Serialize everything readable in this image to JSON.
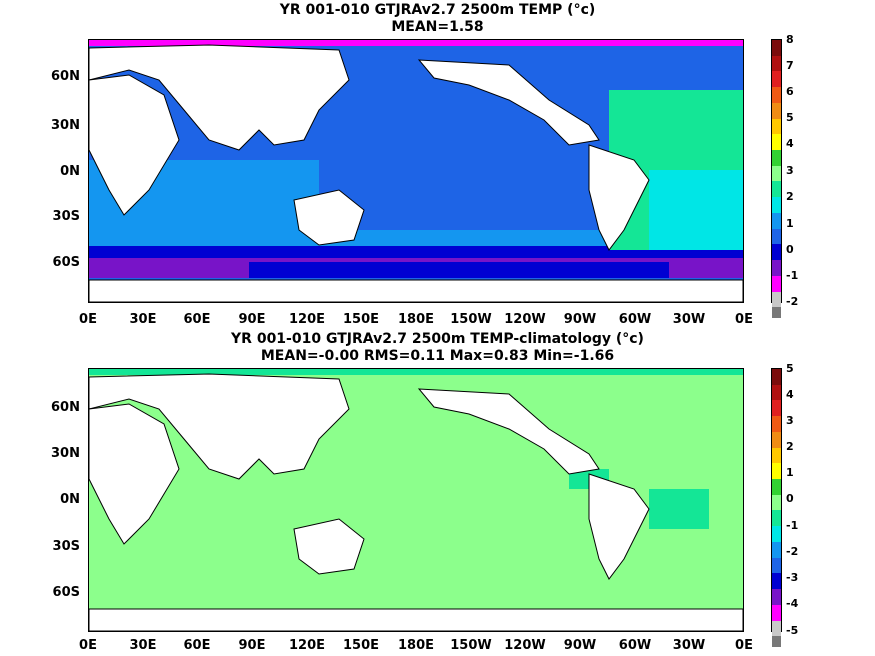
{
  "top": {
    "title": "YR 001-010 GTJRAv2.7 2500m TEMP (°c)",
    "subtitle": "MEAN=1.58",
    "colorbar_labels": [
      "8",
      "7",
      "6",
      "5",
      "4",
      "3",
      "2",
      "1",
      "0",
      "-1",
      "-2"
    ]
  },
  "bottom": {
    "title": "YR 001-010 GTJRAv2.7 2500m TEMP-climatology (°c)",
    "subtitle": "MEAN=-0.00   RMS=0.11   Max=0.83   Min=-1.66",
    "colorbar_labels": [
      "5",
      "4",
      "3",
      "2",
      "1",
      "0",
      "-1",
      "-2",
      "-3",
      "-4",
      "-5"
    ]
  },
  "lat_labels": [
    "60N",
    "30N",
    "0N",
    "30S",
    "60S"
  ],
  "lon_labels": [
    "0E",
    "30E",
    "60E",
    "90E",
    "120E",
    "150E",
    "180E",
    "150W",
    "120W",
    "90W",
    "60W",
    "30W",
    "0E"
  ],
  "colors": {
    "colorbar": [
      "#7b0c0c",
      "#b01010",
      "#e02020",
      "#f05a14",
      "#f08c14",
      "#ffc800",
      "#ffff00",
      "#32d232",
      "#8cff8c",
      "#14e696",
      "#00e6e6",
      "#1496f0",
      "#1e64e6",
      "#0000d2",
      "#7814c8",
      "#c800c8",
      "#ff00ff",
      "#c8c8c8",
      "#787878"
    ],
    "ocean_top_main": "#1e64e6",
    "ocean_top_light": "#1496f0",
    "ocean_top_cyan": "#00e6e6",
    "ocean_top_atl": "#14e696",
    "ocean_top_south": "#0000d2",
    "ocean_top_deep": "#7814c8",
    "ocean_bottom_main": "#8cff8c",
    "ocean_bottom_green": "#14e696",
    "land": "#ffffff"
  }
}
